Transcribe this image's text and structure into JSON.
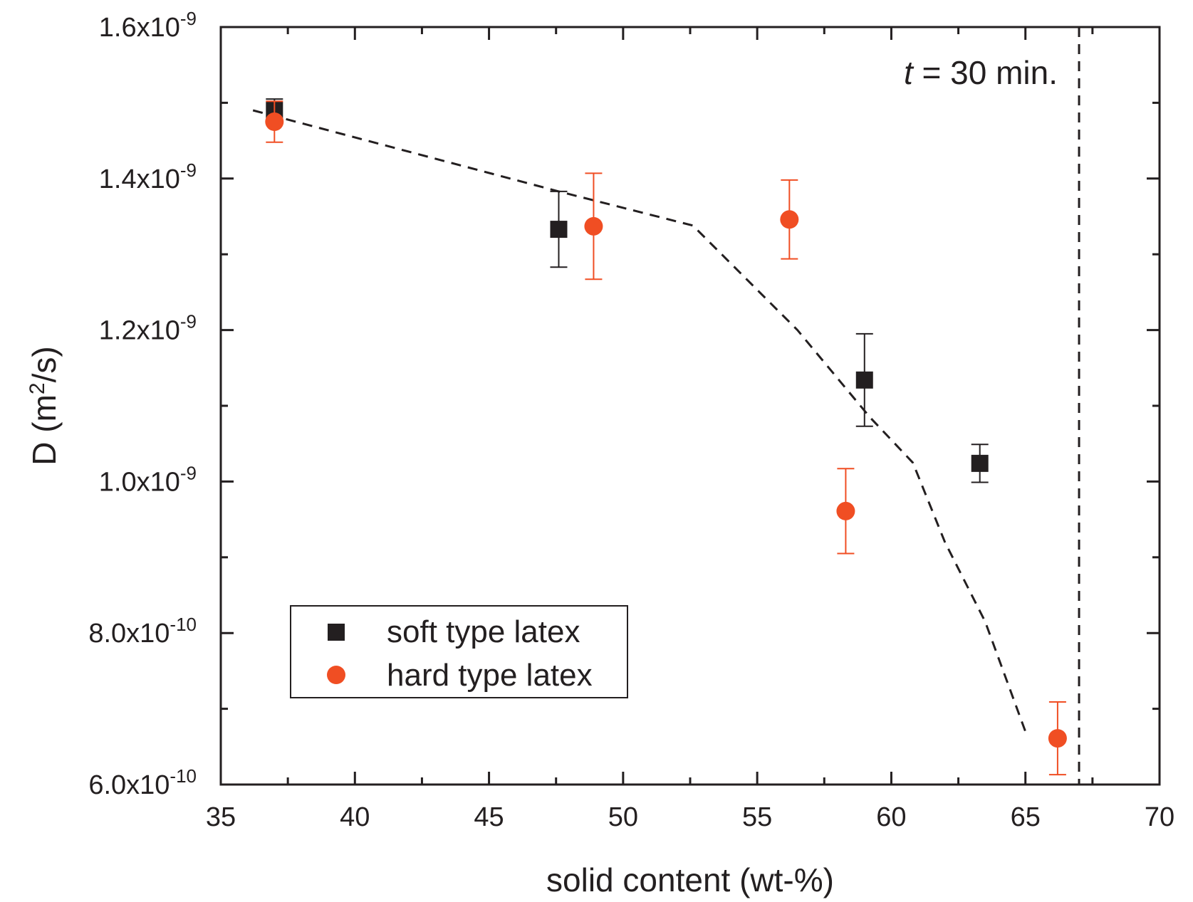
{
  "chart_data": {
    "type": "scatter",
    "title": "",
    "xlabel": "solid content (wt-%)",
    "ylabel_parts": {
      "prefix": "D (m",
      "sup": "2",
      "suffix": "/s)"
    },
    "xlim": [
      35,
      70
    ],
    "ylim": [
      6e-10,
      1.6e-09
    ],
    "x_ticks": [
      35,
      40,
      45,
      50,
      55,
      60,
      65,
      70
    ],
    "x_tick_labels": [
      "35",
      "40",
      "45",
      "50",
      "55",
      "60",
      "65",
      "70"
    ],
    "y_ticks": [
      {
        "value": 6e-10,
        "mantissa": "6.0x10",
        "exponent": "-10"
      },
      {
        "value": 8e-10,
        "mantissa": "8.0x10",
        "exponent": "-10"
      },
      {
        "value": 1e-09,
        "mantissa": "1.0x10",
        "exponent": "-9"
      },
      {
        "value": 1.2e-09,
        "mantissa": "1.2x10",
        "exponent": "-9"
      },
      {
        "value": 1.4e-09,
        "mantissa": "1.4x10",
        "exponent": "-9"
      },
      {
        "value": 1.6e-09,
        "mantissa": "1.6x10",
        "exponent": "-9"
      }
    ],
    "series": [
      {
        "name": "soft type latex",
        "marker": "square",
        "color": "#231f20",
        "points": [
          {
            "x": 37.0,
            "y": 1.49e-09,
            "err": 1.5e-11
          },
          {
            "x": 47.6,
            "y": 1.333e-09,
            "err": 5e-11
          },
          {
            "x": 59.0,
            "y": 1.134e-09,
            "err": 6.1e-11
          },
          {
            "x": 63.3,
            "y": 1.024e-09,
            "err": 2.5e-11
          }
        ]
      },
      {
        "name": "hard type latex",
        "marker": "circle",
        "color": "#f04e23",
        "points": [
          {
            "x": 37.0,
            "y": 1.475e-09,
            "err": 2.7e-11
          },
          {
            "x": 48.9,
            "y": 1.337e-09,
            "err": 7e-11
          },
          {
            "x": 56.2,
            "y": 1.346e-09,
            "err": 5.2e-11
          },
          {
            "x": 58.3,
            "y": 9.61e-10,
            "err": 5.6e-11
          },
          {
            "x": 66.2,
            "y": 6.61e-10,
            "err": 4.8e-11
          }
        ]
      }
    ],
    "guide_line": {
      "style": "dashed",
      "color": "#231f20",
      "points": [
        {
          "x": 36.2,
          "y": 1.49e-09
        },
        {
          "x": 47.6,
          "y": 1.383e-09
        },
        {
          "x": 52.6,
          "y": 1.338e-09
        },
        {
          "x": 56.5,
          "y": 1.2e-09
        },
        {
          "x": 59.2,
          "y": 1.085e-09
        },
        {
          "x": 60.8,
          "y": 1.025e-09
        },
        {
          "x": 62.0,
          "y": 9.2e-10
        },
        {
          "x": 63.5,
          "y": 8.15e-10
        },
        {
          "x": 65.0,
          "y": 6.7e-10
        }
      ]
    },
    "vertical_line": {
      "x": 67.0,
      "style": "dashed",
      "color": "#231f20"
    },
    "annotation": {
      "italic_part": "t",
      "rest": " = 30 min."
    },
    "legend": {
      "placement": "bottom-left",
      "entries": [
        "soft type latex",
        "hard type latex"
      ]
    }
  }
}
